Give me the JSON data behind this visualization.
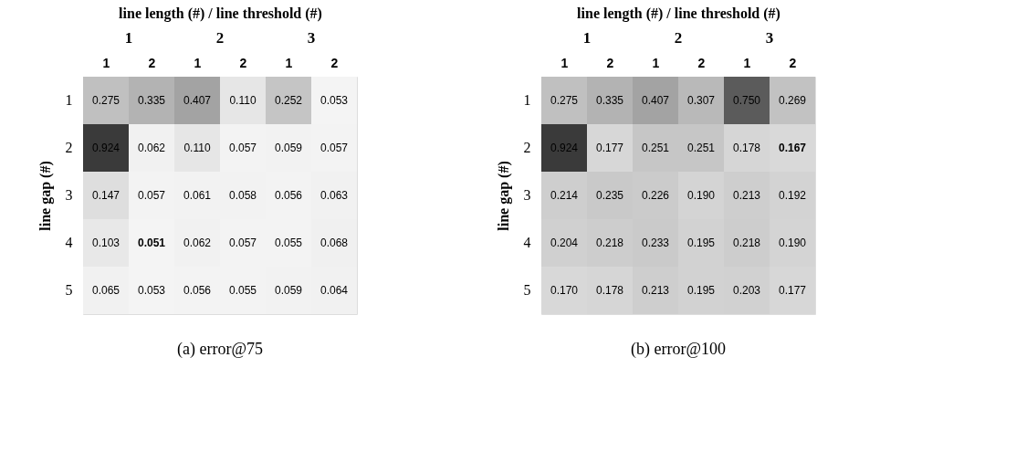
{
  "chart_data": [
    {
      "type": "heatmap",
      "data_labels": true,
      "title": "(a) error@75",
      "xlabel": "line length (#) / line threshold (#)",
      "ylabel": "line gap (#)",
      "annotations": [
        "1",
        "2",
        "3"
      ],
      "categories": [
        "1",
        "2",
        "1",
        "2",
        "1",
        "2"
      ],
      "y_categories": [
        "1",
        "2",
        "3",
        "4",
        "5"
      ],
      "cells": [
        [
          0.275,
          0.335,
          0.407,
          0.11,
          0.252,
          0.053
        ],
        [
          0.924,
          0.062,
          0.11,
          0.057,
          0.059,
          0.057
        ],
        [
          0.147,
          0.057,
          0.061,
          0.058,
          0.056,
          0.063
        ],
        [
          0.103,
          0.051,
          0.062,
          0.057,
          0.055,
          0.068
        ],
        [
          0.065,
          0.053,
          0.056,
          0.055,
          0.059,
          0.064
        ]
      ],
      "cell_labels": [
        [
          "0.275",
          "0.335",
          "0.407",
          "0.110",
          "0.252",
          "0.053"
        ],
        [
          "0.924",
          "0.062",
          "0.110",
          "0.057",
          "0.059",
          "0.057"
        ],
        [
          "0.147",
          "0.057",
          "0.061",
          "0.058",
          "0.056",
          "0.063"
        ],
        [
          "0.103",
          "0.051",
          "0.062",
          "0.057",
          "0.055",
          "0.068"
        ],
        [
          "0.065",
          "0.053",
          "0.056",
          "0.055",
          "0.059",
          "0.064"
        ]
      ]
    },
    {
      "type": "heatmap",
      "data_labels": true,
      "title": "(b) error@100",
      "xlabel": "line length (#) / line threshold (#)",
      "ylabel": "line gap (#)",
      "annotations": [
        "1",
        "2",
        "3"
      ],
      "categories": [
        "1",
        "2",
        "1",
        "2",
        "1",
        "2"
      ],
      "y_categories": [
        "1",
        "2",
        "3",
        "4",
        "5"
      ],
      "cells": [
        [
          0.275,
          0.335,
          0.407,
          0.307,
          0.75,
          0.269
        ],
        [
          0.924,
          0.177,
          0.251,
          0.251,
          0.178,
          0.167
        ],
        [
          0.214,
          0.235,
          0.226,
          0.19,
          0.213,
          0.192
        ],
        [
          0.204,
          0.218,
          0.233,
          0.195,
          0.218,
          0.19
        ],
        [
          0.17,
          0.178,
          0.213,
          0.195,
          0.203,
          0.177
        ]
      ],
      "cell_labels": [
        [
          "0.275",
          "0.335",
          "0.407",
          "0.307",
          "0.750",
          "0.269"
        ],
        [
          "0.924",
          "0.177",
          "0.251",
          "0.251",
          "0.178",
          "0.167"
        ],
        [
          "0.214",
          "0.235",
          "0.226",
          "0.190",
          "0.213",
          "0.192"
        ],
        [
          "0.204",
          "0.218",
          "0.233",
          "0.195",
          "0.218",
          "0.190"
        ],
        [
          "0.170",
          "0.178",
          "0.213",
          "0.195",
          "0.203",
          "0.177"
        ]
      ]
    }
  ]
}
